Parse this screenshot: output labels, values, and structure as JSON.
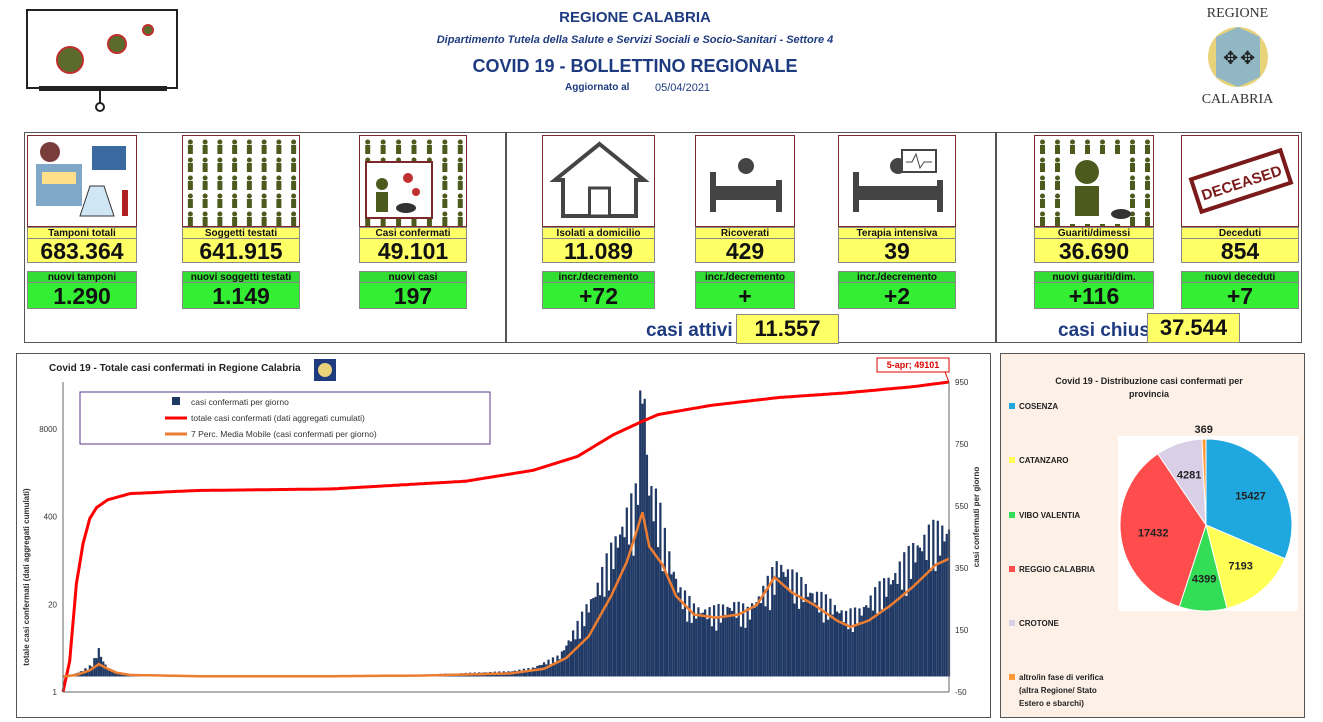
{
  "header": {
    "region": "REGIONE CALABRIA",
    "department": "Dipartimento Tutela della Salute e Servizi Sociali e Socio-Sanitari - Settore 4",
    "title": "COVID 19 - BOLLETTINO REGIONALE",
    "updated_label": "Aggiornato al",
    "updated_date": "05/04/2021",
    "logo_top": "REGIONE",
    "logo_bottom": "CALABRIA"
  },
  "cards": [
    {
      "label": "Tamponi totali",
      "value": "683.364",
      "new_label": "nuovi tamponi",
      "new_value": "1.290",
      "icon": "lab-test-icon"
    },
    {
      "label": "Soggetti testati",
      "value": "641.915",
      "new_label": "nuovi soggetti testati",
      "new_value": "1.149",
      "icon": "people-grid-icon"
    },
    {
      "label": "Casi confermati",
      "value": "49.101",
      "new_label": "nuovi casi",
      "new_value": "197",
      "icon": "infected-person-icon"
    },
    {
      "label": "Isolati a domicilio",
      "value": "11.089",
      "new_label": "incr./decremento",
      "new_value": "+72",
      "icon": "house-icon"
    },
    {
      "label": "Ricoverati",
      "value": "429",
      "new_label": "incr./decremento",
      "new_value": "+",
      "icon": "hospital-bed-icon"
    },
    {
      "label": "Terapia intensiva",
      "value": "39",
      "new_label": "incr./decremento",
      "new_value": "+2",
      "icon": "icu-bed-icon"
    },
    {
      "label": "Guariti/dimessi",
      "value": "36.690",
      "new_label": "nuovi guariti/dim.",
      "new_value": "+116",
      "icon": "recovered-person-icon"
    },
    {
      "label": "Deceduti",
      "value": "854",
      "new_label": "nuovi deceduti",
      "new_value": "+7",
      "icon": "deceased-stamp-icon"
    }
  ],
  "deceased_stamp": "DECEASED",
  "summary": {
    "active_label": "casi attivi",
    "active_value": "11.557",
    "closed_label": "casi chiusi",
    "closed_value": "37.544"
  },
  "colors": {
    "yellow": "#ffff66",
    "green": "#33ee33",
    "navy": "#1f3b80",
    "bars": "#1f3864",
    "cumulative": "#ff0000",
    "moving_average": "#ed7d31"
  },
  "chart_data": [
    {
      "type": "bar",
      "title": "Covid 19 - Totale casi confermati in Regione Calabria",
      "ylabel": "totale casi confermati (dati aggregati cumulati)",
      "y2label": "casi confermati per giorno",
      "left_ticks": [
        "1",
        "20",
        "400",
        "8000"
      ],
      "right_ticks": [
        "-50",
        "150",
        "350",
        "550",
        "750",
        "950"
      ],
      "y2lim": [
        -50,
        950
      ],
      "annotation": "5-apr; 49101",
      "legend_position": "top-left",
      "series": [
        {
          "name": "casi confermati per giorno",
          "kind": "bar",
          "color": "#1f3864",
          "anchors": [
            [
              0,
              0
            ],
            [
              4,
              5
            ],
            [
              8,
              15
            ],
            [
              12,
              30
            ],
            [
              14,
              50
            ],
            [
              16,
              80
            ],
            [
              18,
              45
            ],
            [
              20,
              25
            ],
            [
              24,
              12
            ],
            [
              30,
              5
            ],
            [
              40,
              2
            ],
            [
              60,
              1
            ],
            [
              100,
              1
            ],
            [
              140,
              2
            ],
            [
              160,
              5
            ],
            [
              180,
              10
            ],
            [
              200,
              15
            ],
            [
              210,
              25
            ],
            [
              215,
              40
            ],
            [
              222,
              60
            ],
            [
              230,
              150
            ],
            [
              238,
              250
            ],
            [
              246,
              380
            ],
            [
              252,
              470
            ],
            [
              256,
              520
            ],
            [
              259,
              920
            ],
            [
              262,
              560
            ],
            [
              266,
              500
            ],
            [
              270,
              370
            ],
            [
              276,
              250
            ],
            [
              282,
              200
            ],
            [
              290,
              190
            ],
            [
              300,
              210
            ],
            [
              306,
              190
            ],
            [
              314,
              260
            ],
            [
              320,
              330
            ],
            [
              328,
              280
            ],
            [
              336,
              240
            ],
            [
              344,
              210
            ],
            [
              350,
              180
            ],
            [
              356,
              190
            ],
            [
              364,
              250
            ],
            [
              372,
              300
            ],
            [
              380,
              370
            ],
            [
              388,
              420
            ],
            [
              396,
              430
            ]
          ]
        },
        {
          "name": "totale casi confermati (dati aggregati cumulati)",
          "kind": "line",
          "color": "#ff0000",
          "anchors": [
            [
              0,
              -50
            ],
            [
              3,
              50
            ],
            [
              6,
              300
            ],
            [
              9,
              430
            ],
            [
              12,
              510
            ],
            [
              15,
              545
            ],
            [
              20,
              570
            ],
            [
              30,
              590
            ],
            [
              60,
              600
            ],
            [
              120,
              605
            ],
            [
              180,
              630
            ],
            [
              210,
              665
            ],
            [
              230,
              710
            ],
            [
              246,
              780
            ],
            [
              258,
              820
            ],
            [
              266,
              845
            ],
            [
              290,
              875
            ],
            [
              320,
              900
            ],
            [
              350,
              915
            ],
            [
              380,
              935
            ],
            [
              396,
              950
            ]
          ]
        },
        {
          "name": "7 Perc. Media Mobile (casi confermati per giorno)",
          "kind": "line",
          "color": "#ed7d31",
          "anchors": [
            [
              0,
              0
            ],
            [
              6,
              5
            ],
            [
              12,
              20
            ],
            [
              16,
              40
            ],
            [
              20,
              25
            ],
            [
              24,
              12
            ],
            [
              30,
              5
            ],
            [
              60,
              1
            ],
            [
              120,
              1
            ],
            [
              160,
              3
            ],
            [
              200,
              10
            ],
            [
              215,
              25
            ],
            [
              225,
              60
            ],
            [
              235,
              130
            ],
            [
              245,
              260
            ],
            [
              252,
              370
            ],
            [
              256,
              460
            ],
            [
              259,
              530
            ],
            [
              262,
              420
            ],
            [
              268,
              360
            ],
            [
              274,
              260
            ],
            [
              282,
              200
            ],
            [
              292,
              190
            ],
            [
              302,
              200
            ],
            [
              310,
              230
            ],
            [
              318,
              320
            ],
            [
              326,
              270
            ],
            [
              336,
              230
            ],
            [
              346,
              180
            ],
            [
              352,
              160
            ],
            [
              360,
              180
            ],
            [
              370,
              230
            ],
            [
              380,
              290
            ],
            [
              390,
              360
            ],
            [
              396,
              380
            ]
          ]
        }
      ]
    },
    {
      "type": "pie",
      "title": "Covid 19 - Distribuzione casi confermati per provincia",
      "slices": [
        {
          "label": "COSENZA",
          "value": 15427,
          "color": "#1fa8e0"
        },
        {
          "label": "CATANZARO",
          "value": 7193,
          "color": "#ffff55"
        },
        {
          "label": "VIBO VALENTIA",
          "value": 4399,
          "color": "#33dd55"
        },
        {
          "label": "REGGIO CALABRIA",
          "value": 17432,
          "color": "#ff4d4d"
        },
        {
          "label": "CROTONE",
          "value": 4281,
          "color": "#d9cfe6"
        },
        {
          "label": "altro/in fase di verifica (altra Regione/ Stato Estero e sbarchi)",
          "value": 369,
          "color": "#ff9933"
        }
      ],
      "legend_lines": [
        "COSENZA",
        "CATANZARO",
        "VIBO VALENTIA",
        "REGGIO CALABRIA",
        "CROTONE",
        "altro/in fase di verifica",
        "(altra Regione/ Stato",
        "Estero e sbarchi)"
      ]
    }
  ]
}
